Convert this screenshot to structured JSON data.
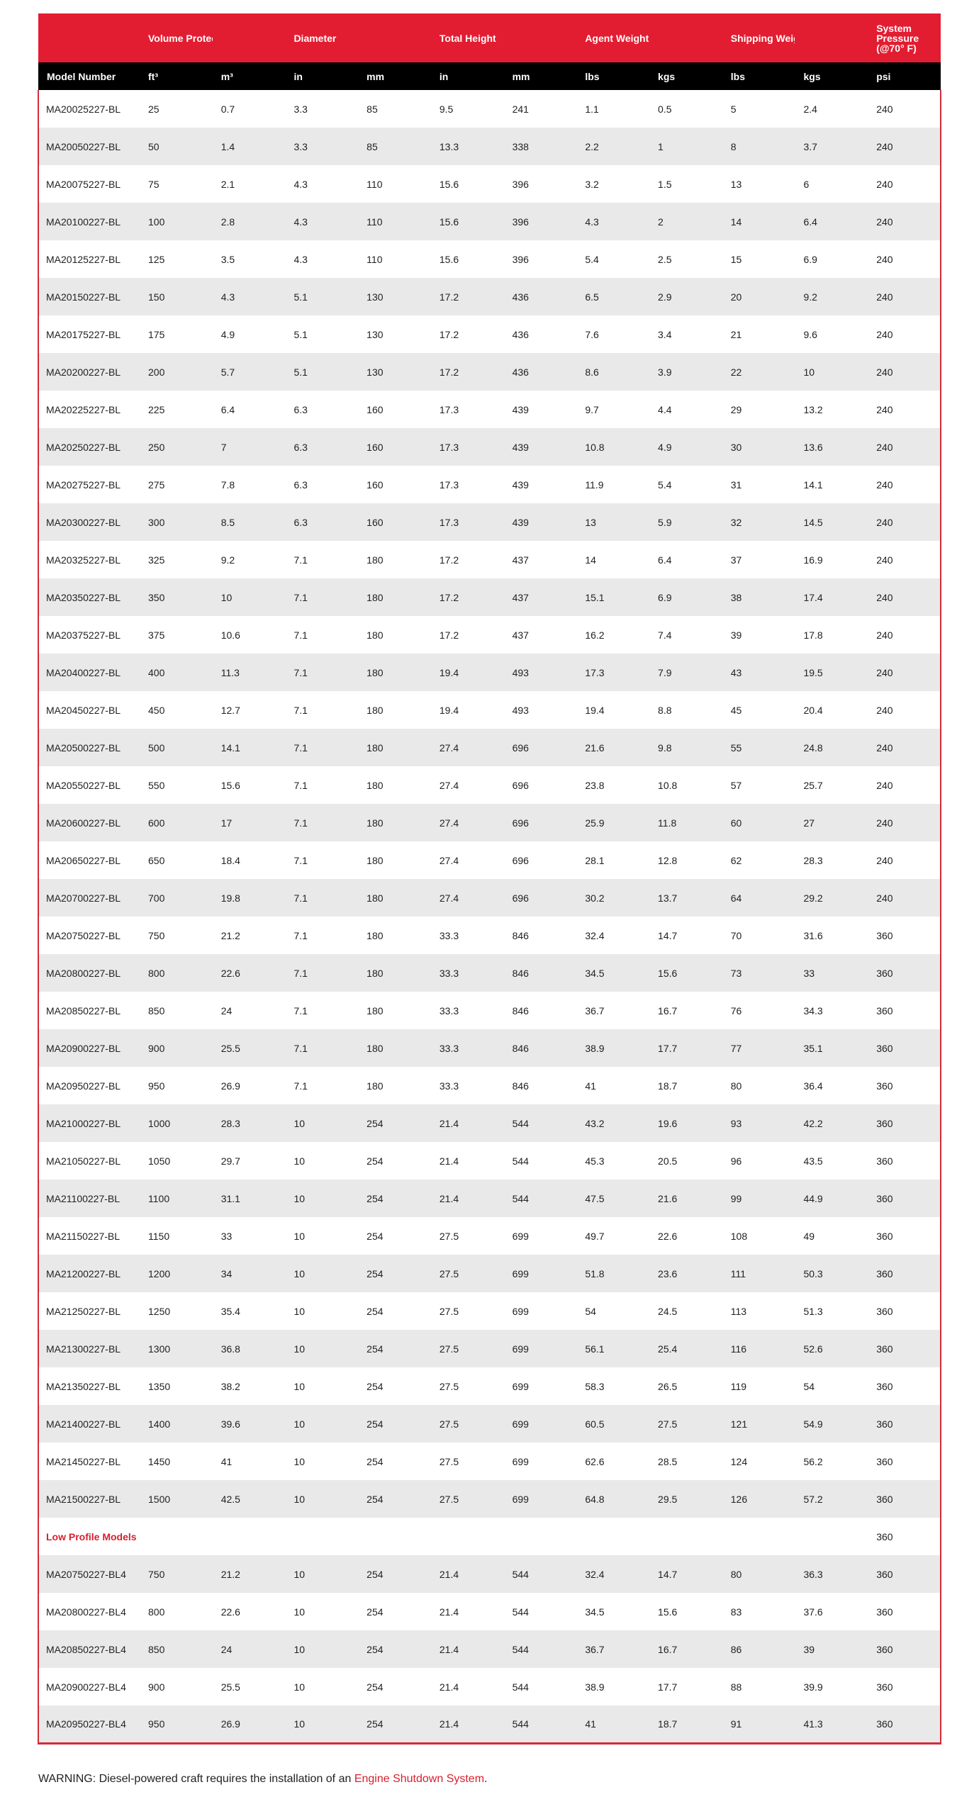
{
  "table": {
    "group_headers": [
      "",
      "Volume Protected",
      "",
      "Diameter",
      "",
      "Total Height",
      "",
      "Agent Weight",
      "",
      "Shipping Weight",
      "",
      "System Pressure (@70° F)"
    ],
    "unit_headers": [
      "Model Number",
      "ft³",
      "m³",
      "in",
      "mm",
      "in",
      "mm",
      "lbs",
      "kgs",
      "lbs",
      "kgs",
      "psi"
    ],
    "rows": [
      [
        "MA20025227-BL",
        "25",
        "0.7",
        "3.3",
        "85",
        "9.5",
        "241",
        "1.1",
        "0.5",
        "5",
        "2.4",
        "240"
      ],
      [
        "MA20050227-BL",
        "50",
        "1.4",
        "3.3",
        "85",
        "13.3",
        "338",
        "2.2",
        "1",
        "8",
        "3.7",
        "240"
      ],
      [
        "MA20075227-BL",
        "75",
        "2.1",
        "4.3",
        "110",
        "15.6",
        "396",
        "3.2",
        "1.5",
        "13",
        "6",
        "240"
      ],
      [
        "MA20100227-BL",
        "100",
        "2.8",
        "4.3",
        "110",
        "15.6",
        "396",
        "4.3",
        "2",
        "14",
        "6.4",
        "240"
      ],
      [
        "MA20125227-BL",
        "125",
        "3.5",
        "4.3",
        "110",
        "15.6",
        "396",
        "5.4",
        "2.5",
        "15",
        "6.9",
        "240"
      ],
      [
        "MA20150227-BL",
        "150",
        "4.3",
        "5.1",
        "130",
        "17.2",
        "436",
        "6.5",
        "2.9",
        "20",
        "9.2",
        "240"
      ],
      [
        "MA20175227-BL",
        "175",
        "4.9",
        "5.1",
        "130",
        "17.2",
        "436",
        "7.6",
        "3.4",
        "21",
        "9.6",
        "240"
      ],
      [
        "MA20200227-BL",
        "200",
        "5.7",
        "5.1",
        "130",
        "17.2",
        "436",
        "8.6",
        "3.9",
        "22",
        "10",
        "240"
      ],
      [
        "MA20225227-BL",
        "225",
        "6.4",
        "6.3",
        "160",
        "17.3",
        "439",
        "9.7",
        "4.4",
        "29",
        "13.2",
        "240"
      ],
      [
        "MA20250227-BL",
        "250",
        "7",
        "6.3",
        "160",
        "17.3",
        "439",
        "10.8",
        "4.9",
        "30",
        "13.6",
        "240"
      ],
      [
        "MA20275227-BL",
        "275",
        "7.8",
        "6.3",
        "160",
        "17.3",
        "439",
        "11.9",
        "5.4",
        "31",
        "14.1",
        "240"
      ],
      [
        "MA20300227-BL",
        "300",
        "8.5",
        "6.3",
        "160",
        "17.3",
        "439",
        "13",
        "5.9",
        "32",
        "14.5",
        "240"
      ],
      [
        "MA20325227-BL",
        "325",
        "9.2",
        "7.1",
        "180",
        "17.2",
        "437",
        "14",
        "6.4",
        "37",
        "16.9",
        "240"
      ],
      [
        "MA20350227-BL",
        "350",
        "10",
        "7.1",
        "180",
        "17.2",
        "437",
        "15.1",
        "6.9",
        "38",
        "17.4",
        "240"
      ],
      [
        "MA20375227-BL",
        "375",
        "10.6",
        "7.1",
        "180",
        "17.2",
        "437",
        "16.2",
        "7.4",
        "39",
        "17.8",
        "240"
      ],
      [
        "MA20400227-BL",
        "400",
        "11.3",
        "7.1",
        "180",
        "19.4",
        "493",
        "17.3",
        "7.9",
        "43",
        "19.5",
        "240"
      ],
      [
        "MA20450227-BL",
        "450",
        "12.7",
        "7.1",
        "180",
        "19.4",
        "493",
        "19.4",
        "8.8",
        "45",
        "20.4",
        "240"
      ],
      [
        "MA20500227-BL",
        "500",
        "14.1",
        "7.1",
        "180",
        "27.4",
        "696",
        "21.6",
        "9.8",
        "55",
        "24.8",
        "240"
      ],
      [
        "MA20550227-BL",
        "550",
        "15.6",
        "7.1",
        "180",
        "27.4",
        "696",
        "23.8",
        "10.8",
        "57",
        "25.7",
        "240"
      ],
      [
        "MA20600227-BL",
        "600",
        "17",
        "7.1",
        "180",
        "27.4",
        "696",
        "25.9",
        "11.8",
        "60",
        "27",
        "240"
      ],
      [
        "MA20650227-BL",
        "650",
        "18.4",
        "7.1",
        "180",
        "27.4",
        "696",
        "28.1",
        "12.8",
        "62",
        "28.3",
        "240"
      ],
      [
        "MA20700227-BL",
        "700",
        "19.8",
        "7.1",
        "180",
        "27.4",
        "696",
        "30.2",
        "13.7",
        "64",
        "29.2",
        "240"
      ],
      [
        "MA20750227-BL",
        "750",
        "21.2",
        "7.1",
        "180",
        "33.3",
        "846",
        "32.4",
        "14.7",
        "70",
        "31.6",
        "360"
      ],
      [
        "MA20800227-BL",
        "800",
        "22.6",
        "7.1",
        "180",
        "33.3",
        "846",
        "34.5",
        "15.6",
        "73",
        "33",
        "360"
      ],
      [
        "MA20850227-BL",
        "850",
        "24",
        "7.1",
        "180",
        "33.3",
        "846",
        "36.7",
        "16.7",
        "76",
        "34.3",
        "360"
      ],
      [
        "MA20900227-BL",
        "900",
        "25.5",
        "7.1",
        "180",
        "33.3",
        "846",
        "38.9",
        "17.7",
        "77",
        "35.1",
        "360"
      ],
      [
        "MA20950227-BL",
        "950",
        "26.9",
        "7.1",
        "180",
        "33.3",
        "846",
        "41",
        "18.7",
        "80",
        "36.4",
        "360"
      ],
      [
        "MA21000227-BL",
        "1000",
        "28.3",
        "10",
        "254",
        "21.4",
        "544",
        "43.2",
        "19.6",
        "93",
        "42.2",
        "360"
      ],
      [
        "MA21050227-BL",
        "1050",
        "29.7",
        "10",
        "254",
        "21.4",
        "544",
        "45.3",
        "20.5",
        "96",
        "43.5",
        "360"
      ],
      [
        "MA21100227-BL",
        "1100",
        "31.1",
        "10",
        "254",
        "21.4",
        "544",
        "47.5",
        "21.6",
        "99",
        "44.9",
        "360"
      ],
      [
        "MA21150227-BL",
        "1150",
        "33",
        "10",
        "254",
        "27.5",
        "699",
        "49.7",
        "22.6",
        "108",
        "49",
        "360"
      ],
      [
        "MA21200227-BL",
        "1200",
        "34",
        "10",
        "254",
        "27.5",
        "699",
        "51.8",
        "23.6",
        "111",
        "50.3",
        "360"
      ],
      [
        "MA21250227-BL",
        "1250",
        "35.4",
        "10",
        "254",
        "27.5",
        "699",
        "54",
        "24.5",
        "113",
        "51.3",
        "360"
      ],
      [
        "MA21300227-BL",
        "1300",
        "36.8",
        "10",
        "254",
        "27.5",
        "699",
        "56.1",
        "25.4",
        "116",
        "52.6",
        "360"
      ],
      [
        "MA21350227-BL",
        "1350",
        "38.2",
        "10",
        "254",
        "27.5",
        "699",
        "58.3",
        "26.5",
        "119",
        "54",
        "360"
      ],
      [
        "MA21400227-BL",
        "1400",
        "39.6",
        "10",
        "254",
        "27.5",
        "699",
        "60.5",
        "27.5",
        "121",
        "54.9",
        "360"
      ],
      [
        "MA21450227-BL",
        "1450",
        "41",
        "10",
        "254",
        "27.5",
        "699",
        "62.6",
        "28.5",
        "124",
        "56.2",
        "360"
      ],
      [
        "MA21500227-BL",
        "1500",
        "42.5",
        "10",
        "254",
        "27.5",
        "699",
        "64.8",
        "29.5",
        "126",
        "57.2",
        "360"
      ],
      [
        "Low Profile Models",
        "",
        "",
        "",
        "",
        "",
        "",
        "",
        "",
        "",
        "",
        "360"
      ],
      [
        "MA20750227-BL4",
        "750",
        "21.2",
        "10",
        "254",
        "21.4",
        "544",
        "32.4",
        "14.7",
        "80",
        "36.3",
        "360"
      ],
      [
        "MA20800227-BL4",
        "800",
        "22.6",
        "10",
        "254",
        "21.4",
        "544",
        "34.5",
        "15.6",
        "83",
        "37.6",
        "360"
      ],
      [
        "MA20850227-BL4",
        "850",
        "24",
        "10",
        "254",
        "21.4",
        "544",
        "36.7",
        "16.7",
        "86",
        "39",
        "360"
      ],
      [
        "MA20900227-BL4",
        "900",
        "25.5",
        "10",
        "254",
        "21.4",
        "544",
        "38.9",
        "17.7",
        "88",
        "39.9",
        "360"
      ],
      [
        "MA20950227-BL4",
        "950",
        "26.9",
        "10",
        "254",
        "21.4",
        "544",
        "41",
        "18.7",
        "91",
        "41.3",
        "360"
      ]
    ],
    "section_row_index": 38
  },
  "warning": {
    "text": "WARNING: Diesel-powered craft requires the installation of an ",
    "link_label": "Engine Shutdown System",
    "suffix": "."
  },
  "colors": {
    "header_red": "#e31d31",
    "header_black": "#000000",
    "stripe": "#e9e9e9",
    "accent_red": "#d8202f"
  }
}
